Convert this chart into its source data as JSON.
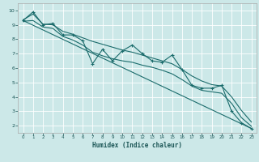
{
  "xlabel": "Humidex (Indice chaleur)",
  "bg_color": "#cce8e8",
  "grid_color": "#ffffff",
  "line_color": "#1a6b6b",
  "xlim": [
    -0.5,
    23.5
  ],
  "ylim": [
    1.5,
    10.5
  ],
  "xticks": [
    0,
    1,
    2,
    3,
    4,
    5,
    6,
    7,
    8,
    9,
    10,
    11,
    12,
    13,
    14,
    15,
    16,
    17,
    18,
    19,
    20,
    21,
    22,
    23
  ],
  "yticks": [
    2,
    3,
    4,
    5,
    6,
    7,
    8,
    9,
    10
  ],
  "data_x": [
    0,
    1,
    2,
    3,
    4,
    5,
    6,
    7,
    8,
    9,
    10,
    11,
    12,
    13,
    14,
    15,
    16,
    17,
    18,
    19,
    20,
    21,
    22,
    23
  ],
  "data_y": [
    9.3,
    9.9,
    9.0,
    9.1,
    8.3,
    8.3,
    7.9,
    6.3,
    7.3,
    6.5,
    7.2,
    7.6,
    7.0,
    6.5,
    6.4,
    6.9,
    5.9,
    4.8,
    4.6,
    4.6,
    4.8,
    3.0,
    2.2,
    1.8
  ],
  "trend_x": [
    0,
    23
  ],
  "trend_y": [
    9.3,
    1.8
  ],
  "smooth_upper_y": [
    9.35,
    9.75,
    9.05,
    9.0,
    8.55,
    8.35,
    8.1,
    7.85,
    7.65,
    7.45,
    7.25,
    7.1,
    6.9,
    6.7,
    6.5,
    6.3,
    5.9,
    5.45,
    5.1,
    4.85,
    4.75,
    4.0,
    3.05,
    2.25
  ],
  "smooth_lower_y": [
    9.25,
    9.3,
    8.85,
    8.75,
    8.2,
    7.95,
    7.6,
    7.1,
    6.85,
    6.65,
    6.5,
    6.4,
    6.2,
    6.05,
    5.85,
    5.6,
    5.2,
    4.75,
    4.45,
    4.35,
    4.25,
    3.55,
    2.55,
    1.95
  ]
}
